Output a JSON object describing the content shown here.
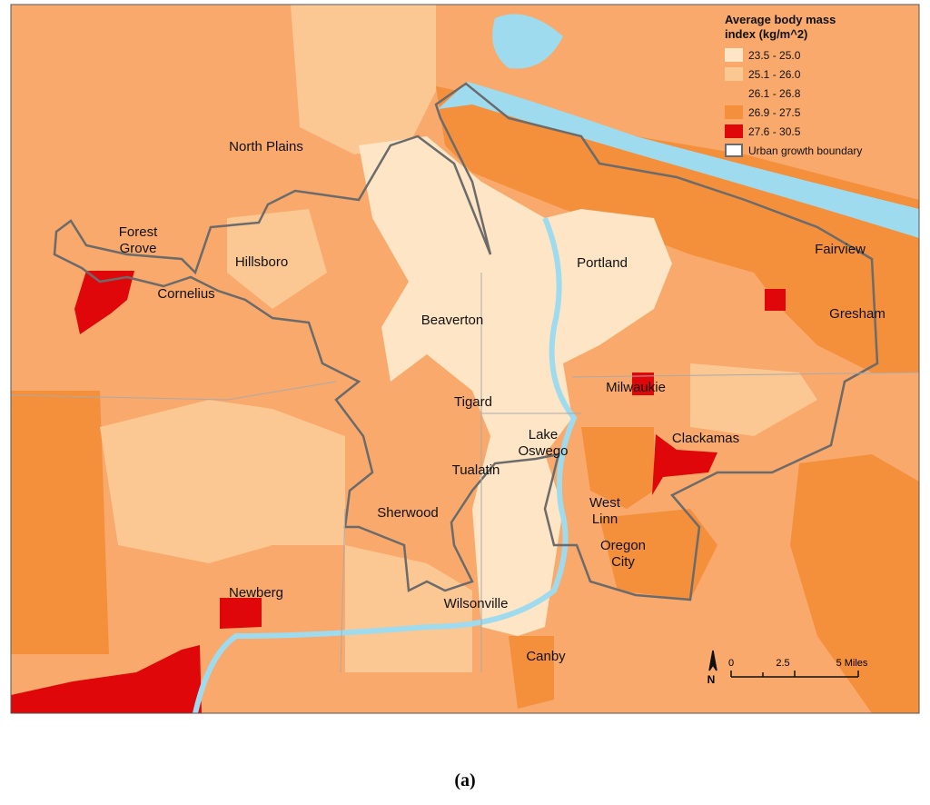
{
  "map": {
    "places": [
      "North Plains",
      "Forest Grove",
      "Hillsboro",
      "Cornelius",
      "Portland",
      "Fairview",
      "Beaverton",
      "Gresham",
      "Tigard",
      "Milwaukie",
      "Clackamas",
      "Lake Oswego",
      "Tualatin",
      "West Linn",
      "Sherwood",
      "Oregon City",
      "Newberg",
      "Wilsonville",
      "Canby"
    ],
    "legend": {
      "title": "Average body mass index (kg/m^2)",
      "items": [
        {
          "label": "23.5 - 25.0",
          "color": "#fde5c6"
        },
        {
          "label": "25.1 - 26.0",
          "color": "#fbc792"
        },
        {
          "label": "26.1 - 26.8",
          "color": "#f8a96b"
        },
        {
          "label": "26.9 - 27.5",
          "color": "#f48f3c"
        },
        {
          "label": "27.6 - 30.5",
          "color": "#e0070b"
        }
      ],
      "boundary": {
        "label": "Urban growth boundary",
        "color": "#6b6b6b"
      }
    },
    "water_color": "#9fdbef",
    "scale": {
      "north": "N",
      "labels": [
        "0",
        "2.5",
        "5 Miles"
      ]
    }
  },
  "caption": "(a)"
}
